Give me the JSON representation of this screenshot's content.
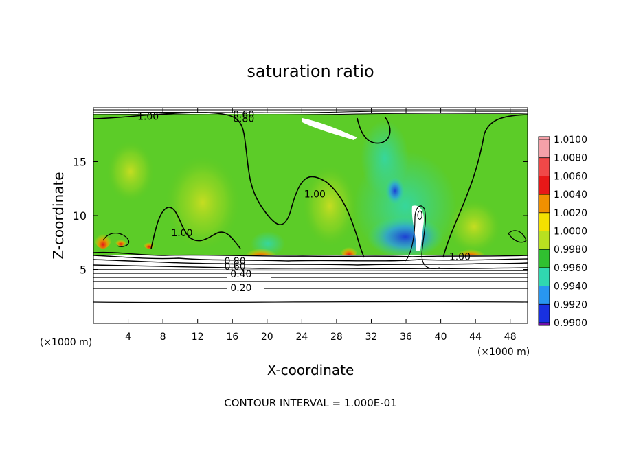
{
  "chart_data": {
    "type": "heatmap",
    "title": "saturation ratio",
    "xlabel": "X-coordinate",
    "ylabel": "Z-coordinate",
    "x_unit": "(×1000 m)",
    "y_unit": "(×1000 m)",
    "footer": "CONTOUR INTERVAL = 1.000E-01",
    "xlim": [
      0,
      50
    ],
    "ylim": [
      0,
      20
    ],
    "x_ticks": [
      4,
      8,
      12,
      16,
      20,
      24,
      28,
      32,
      36,
      40,
      44,
      48
    ],
    "y_ticks": [
      5,
      10,
      15
    ],
    "colorbar": {
      "levels": [
        "1.0100",
        "1.0080",
        "1.0060",
        "1.0040",
        "1.0020",
        "1.0000",
        "0.9980",
        "0.9960",
        "0.9940",
        "0.9920",
        "0.9900"
      ],
      "colors": [
        "#f5a0a8",
        "#f04848",
        "#e81818",
        "#f09000",
        "#f4e000",
        "#b8e020",
        "#30c030",
        "#30d8b0",
        "#2896f0",
        "#1830e0",
        "#2010a0",
        "#7010a8"
      ]
    },
    "contour_labels": [
      {
        "text": "1.00",
        "x": 6.3,
        "z": 19.2
      },
      {
        "text": "0.60",
        "x": 17.3,
        "z": 19.4
      },
      {
        "text": "0.80",
        "x": 17.3,
        "z": 19.0
      },
      {
        "text": "1.00",
        "x": 25.5,
        "z": 12.0
      },
      {
        "text": "1.00",
        "x": 10.2,
        "z": 8.4
      },
      {
        "text": "1.00",
        "x": 42.2,
        "z": 6.2
      },
      {
        "text": "0.80",
        "x": 16.3,
        "z": 5.8
      },
      {
        "text": "0.60",
        "x": 16.3,
        "z": 5.3
      },
      {
        "text": "0.40",
        "x": 17.0,
        "z": 4.6
      },
      {
        "text": "0.20",
        "x": 17.0,
        "z": 3.3
      }
    ]
  }
}
